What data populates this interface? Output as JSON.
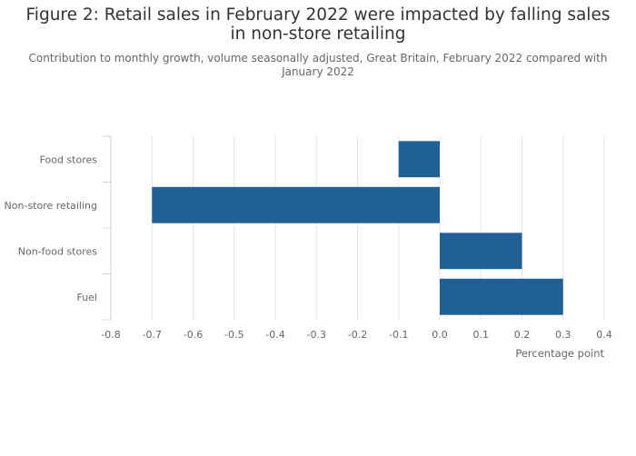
{
  "header": {
    "title": "Figure 2: Retail sales in February 2022 were impacted by falling sales in non-store retailing",
    "subtitle": "Contribution to monthly growth, volume seasonally adjusted, Great Britain, February 2022 compared with January 2022"
  },
  "colors": {
    "bar": "#206095",
    "grid": "#e6e6e6",
    "axis": "#c9d4e0",
    "text": "#666666"
  },
  "chart_data": {
    "type": "bar",
    "orientation": "horizontal",
    "title": "Figure 2: Retail sales in February 2022 were impacted by falling sales in non-store retailing",
    "subtitle": "Contribution to monthly growth, volume seasonally adjusted, Great Britain, February 2022 compared with January 2022",
    "categories": [
      "Food stores",
      "Non-store retailing",
      "Non-food stores",
      "Fuel"
    ],
    "values": [
      -0.1,
      -0.7,
      0.2,
      0.3
    ],
    "xlabel": "Percentage point",
    "ylabel": "",
    "xlim": [
      -0.8,
      0.4
    ],
    "xticks": [
      -0.8,
      -0.7,
      -0.6,
      -0.5,
      -0.4,
      -0.3,
      -0.2,
      -0.1,
      0.0,
      0.1,
      0.2,
      0.3,
      0.4
    ],
    "xtick_labels": [
      "-0.8",
      "-0.7",
      "-0.6",
      "-0.5",
      "-0.4",
      "-0.3",
      "-0.2",
      "-0.1",
      "0.0",
      "0.1",
      "0.2",
      "0.3",
      "0.4"
    ],
    "grid": true,
    "legend": false
  }
}
